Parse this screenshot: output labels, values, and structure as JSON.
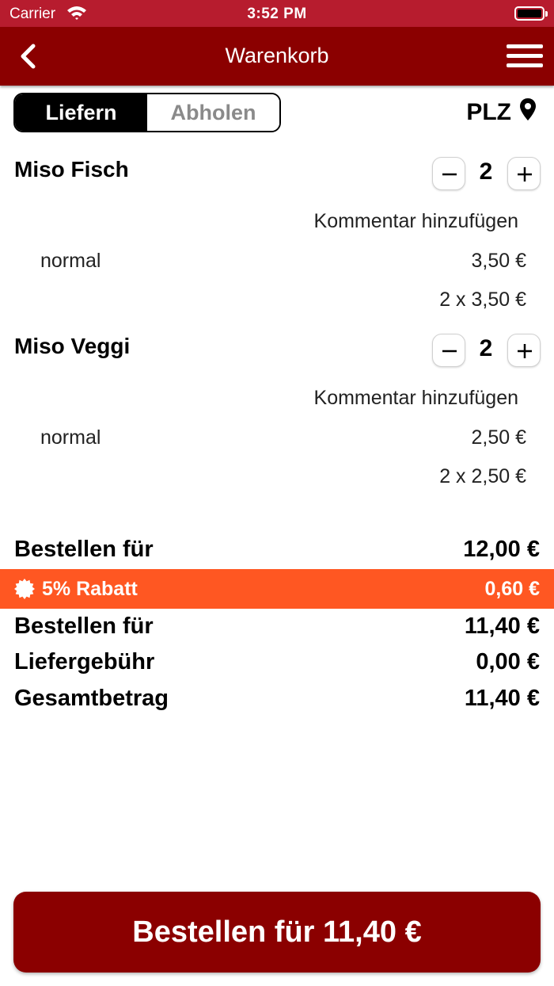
{
  "status_bar": {
    "carrier": "Carrier",
    "time": "3:52 PM"
  },
  "nav": {
    "title": "Warenkorb"
  },
  "segment": {
    "deliver": "Liefern",
    "pickup": "Abholen"
  },
  "plz": {
    "label": "PLZ"
  },
  "items": [
    {
      "name": "Miso Fisch",
      "qty": "2",
      "comment": "Kommentar hinzufügen",
      "variant": "normal",
      "unit_price": "3,50 €",
      "line_total": "2 x 3,50 €"
    },
    {
      "name": "Miso Veggi",
      "qty": "2",
      "comment": "Kommentar hinzufügen",
      "variant": "normal",
      "unit_price": "2,50 €",
      "line_total": "2 x 2,50 €"
    }
  ],
  "summary": {
    "subtotal_label": "Bestellen für",
    "subtotal_value": "12,00 €",
    "discount_label": "5% Rabatt",
    "discount_value": "0,60 €",
    "after_discount_label": "Bestellen für",
    "after_discount_value": "11,40 €",
    "delivery_label": "Liefergebühr",
    "delivery_value": "0,00 €",
    "total_label": "Gesamtbetrag",
    "total_value": "11,40 €"
  },
  "order_button": {
    "label": "Bestellen für 11,40 €"
  },
  "colors": {
    "status_bar": "#b71c2e",
    "nav_bar": "#8b0000",
    "discount": "#ff5722",
    "button": "#8b0000"
  }
}
